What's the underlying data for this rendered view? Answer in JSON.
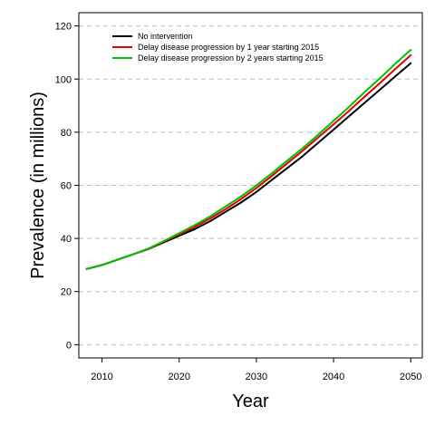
{
  "chart_data": {
    "type": "line",
    "title": "",
    "xlabel": "Year",
    "ylabel": "Prevalence (in millions)",
    "xlim": [
      2007,
      2051.5
    ],
    "ylim": [
      -5,
      125
    ],
    "x_ticks": [
      2010,
      2020,
      2030,
      2040,
      2050
    ],
    "y_ticks": [
      0,
      20,
      40,
      60,
      80,
      100,
      120
    ],
    "grid": "horizontal dashed",
    "legend_position": "top-left",
    "x": [
      2008,
      2010,
      2012,
      2014,
      2016,
      2018,
      2020,
      2022,
      2024,
      2026,
      2028,
      2030,
      2032,
      2034,
      2036,
      2038,
      2040,
      2042,
      2044,
      2046,
      2048,
      2050
    ],
    "series": [
      {
        "name": "No intervention",
        "color": "#000000",
        "values": [
          28.5,
          30.0,
          32.0,
          34.0,
          36.0,
          38.5,
          41.0,
          43.5,
          46.5,
          50.0,
          53.5,
          57.5,
          62.0,
          66.5,
          71.0,
          76.0,
          81.0,
          86.0,
          91.0,
          96.0,
          101.0,
          106.0
        ]
      },
      {
        "name": "Delay disease progression by 1 year starting 2015",
        "color": "#e00000",
        "values": [
          28.5,
          30.0,
          32.0,
          34.0,
          36.0,
          38.8,
          41.5,
          44.3,
          47.5,
          51.0,
          54.8,
          59.0,
          63.5,
          68.3,
          73.0,
          78.0,
          83.0,
          88.0,
          93.3,
          98.5,
          103.8,
          109.0
        ]
      },
      {
        "name": "Delay disease progression by 2 years starting 2015",
        "color": "#00c000",
        "values": [
          28.5,
          30.0,
          32.0,
          34.0,
          36.2,
          39.0,
          42.0,
          45.0,
          48.3,
          52.0,
          55.8,
          60.0,
          64.5,
          69.3,
          74.0,
          79.0,
          84.3,
          89.5,
          95.0,
          100.3,
          105.8,
          111.0
        ]
      }
    ]
  }
}
